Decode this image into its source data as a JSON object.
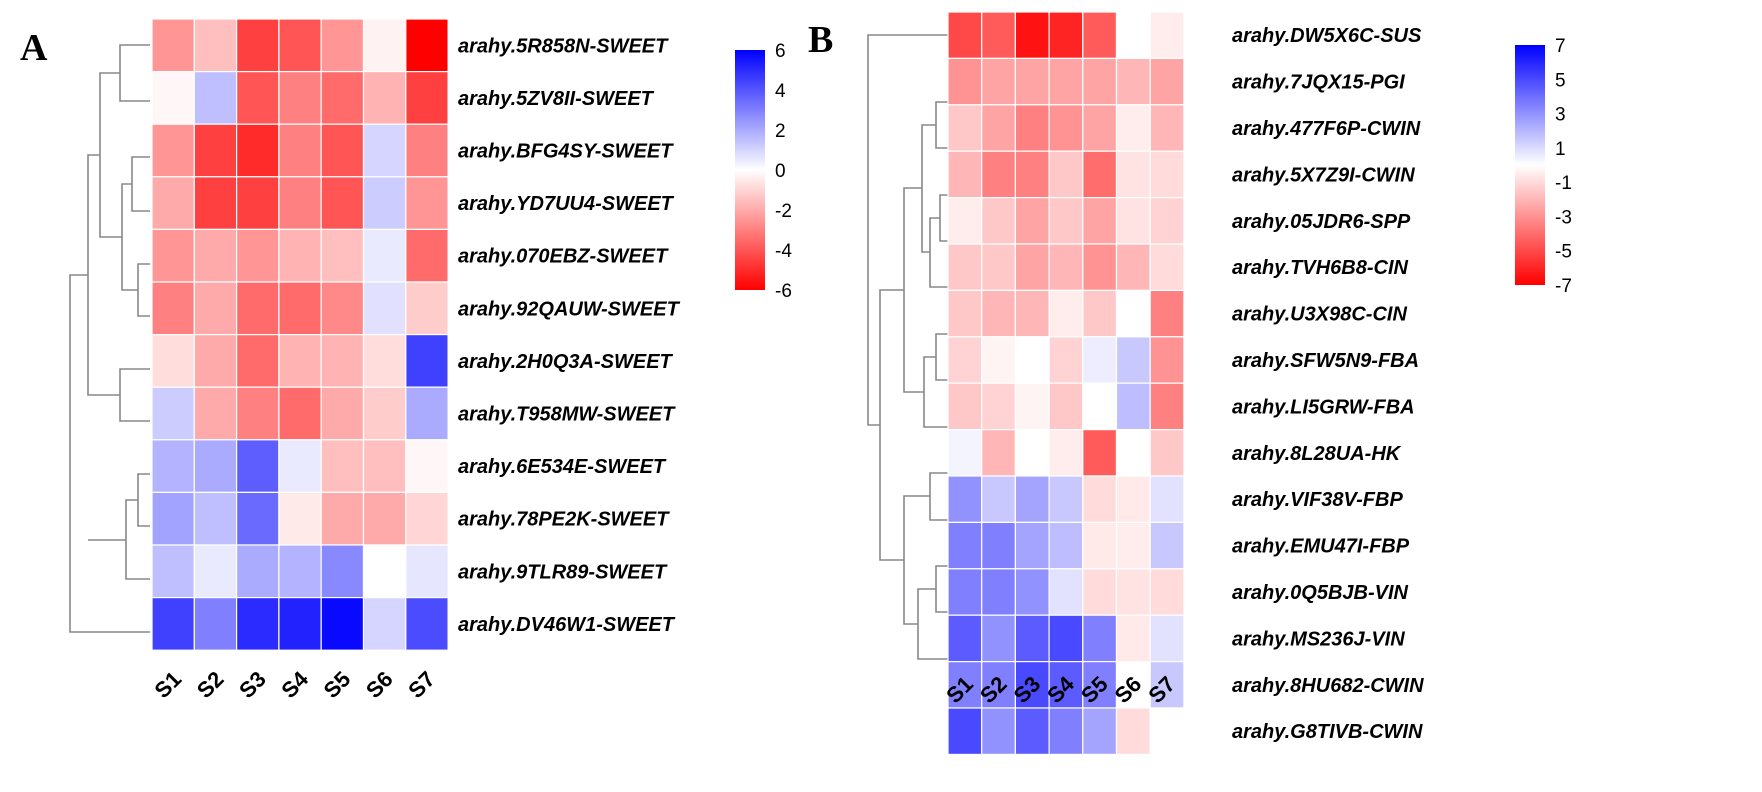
{
  "panels": [
    {
      "letter": "A",
      "chart_data": {
        "type": "heatmap",
        "samples": [
          "S1",
          "S2",
          "S3",
          "S4",
          "S5",
          "S6",
          "S7"
        ],
        "genes": [
          "arahy.5R858N-SWEET",
          "arahy.5ZV8II-SWEET",
          "arahy.BFG4SY-SWEET",
          "arahy.YD7UU4-SWEET",
          "arahy.070EBZ-SWEET",
          "arahy.92QAUW-SWEET",
          "arahy.2H0Q3A-SWEET",
          "arahy.T958MW-SWEET",
          "arahy.6E534E-SWEET",
          "arahy.78PE2K-SWEET",
          "arahy.9TLR89-SWEET",
          "arahy.DV46W1-SWEET"
        ],
        "values": [
          [
            -2.5,
            -1.5,
            -4.5,
            -4.0,
            -2.5,
            -0.3,
            -6.0
          ],
          [
            -0.2,
            1.5,
            -4.0,
            -3.0,
            -3.5,
            -1.8,
            -4.5
          ],
          [
            -2.5,
            -4.5,
            -5.0,
            -3.0,
            -4.0,
            1.0,
            -3.0
          ],
          [
            -2.0,
            -4.5,
            -4.5,
            -3.0,
            -4.0,
            1.2,
            -2.5
          ],
          [
            -2.5,
            -2.0,
            -2.5,
            -1.8,
            -1.5,
            0.5,
            -3.5
          ],
          [
            -3.0,
            -2.0,
            -3.5,
            -3.5,
            -2.8,
            0.7,
            -1.2
          ],
          [
            -0.8,
            -2.0,
            -3.5,
            -1.8,
            -1.8,
            -0.8,
            4.5
          ],
          [
            1.2,
            -2.0,
            -3.0,
            -3.5,
            -2.0,
            -1.2,
            2.0
          ],
          [
            1.8,
            2.0,
            3.8,
            0.5,
            -1.5,
            -1.5,
            -0.2
          ],
          [
            2.2,
            1.5,
            3.5,
            -0.5,
            -2.0,
            -2.0,
            -1.0
          ],
          [
            1.5,
            0.5,
            2.0,
            1.8,
            2.8,
            0.0,
            0.6
          ],
          [
            4.5,
            3.0,
            5.0,
            5.2,
            5.8,
            1.0,
            4.2
          ]
        ],
        "colorbar": {
          "min": -6,
          "max": 6,
          "ticks": [
            "6",
            "4",
            "2",
            "0",
            "-2",
            "-4",
            "-6"
          ]
        },
        "colors": {
          "low": "#ff0000",
          "mid": "#ffffff",
          "high": "#0000ff"
        }
      }
    },
    {
      "letter": "B",
      "chart_data": {
        "type": "heatmap",
        "samples": [
          "S1",
          "S2",
          "S3",
          "S4",
          "S5",
          "S6",
          "S7"
        ],
        "genes": [
          "arahy.DW5X6C-SUS",
          "arahy.7JQX15-PGI",
          "arahy.477F6P-CWIN",
          "arahy.5X7Z9I-CWIN",
          "arahy.05JDR6-SPP",
          "arahy.TVH6B8-CIN",
          "arahy.U3X98C-CIN",
          "arahy.SFW5N9-FBA",
          "arahy.LI5GRW-FBA",
          "arahy.8L28UA-HK",
          "arahy.VIF38V-FBP",
          "arahy.EMU47I-FBP",
          "arahy.0Q5BJB-VIN",
          "arahy.MS236J-VIN",
          "arahy.8HU682-CWIN",
          "arahy.G8TIVB-CWIN"
        ],
        "values": [
          [
            -5.0,
            -4.5,
            -6.5,
            -6.0,
            -4.5,
            0.0,
            -0.5
          ],
          [
            -3.0,
            -2.5,
            -2.5,
            -2.5,
            -2.5,
            -2.0,
            -2.5
          ],
          [
            -1.5,
            -2.5,
            -3.5,
            -3.0,
            -2.5,
            -0.5,
            -2.0
          ],
          [
            -2.0,
            -3.5,
            -3.5,
            -1.5,
            -4.0,
            -0.8,
            -1.0
          ],
          [
            -0.5,
            -1.5,
            -2.5,
            -1.5,
            -2.5,
            -0.8,
            -1.2
          ],
          [
            -1.5,
            -1.5,
            -2.5,
            -2.0,
            -3.0,
            -2.0,
            -1.0
          ],
          [
            -1.5,
            -2.0,
            -2.0,
            -0.5,
            -1.5,
            0.0,
            -3.5
          ],
          [
            -1.2,
            -0.3,
            0.0,
            -1.2,
            0.5,
            1.5,
            -3.0
          ],
          [
            -1.5,
            -1.2,
            -0.3,
            -1.5,
            0.0,
            1.8,
            -3.5
          ],
          [
            0.3,
            -2.0,
            0.0,
            -0.5,
            -4.5,
            0.0,
            -1.5
          ],
          [
            3.0,
            1.5,
            2.5,
            1.5,
            -1.0,
            -0.6,
            0.8
          ],
          [
            3.5,
            3.5,
            2.5,
            1.8,
            -0.6,
            -0.5,
            1.5
          ],
          [
            3.5,
            3.5,
            3.0,
            0.8,
            -1.0,
            -0.8,
            -1.0
          ],
          [
            4.5,
            3.0,
            4.5,
            5.0,
            3.5,
            -0.6,
            0.8
          ],
          [
            3.5,
            3.5,
            5.0,
            4.5,
            3.5,
            0.0,
            1.5
          ],
          [
            5.0,
            3.0,
            4.5,
            3.5,
            2.5,
            -1.0,
            0.0
          ]
        ],
        "colorbar": {
          "min": -7,
          "max": 7,
          "ticks": [
            "7",
            "5",
            "3",
            "1",
            "-1",
            "-3",
            "-5",
            "-7"
          ]
        },
        "colors": {
          "low": "#ff0000",
          "mid": "#ffffff",
          "high": "#0000ff"
        }
      }
    }
  ]
}
